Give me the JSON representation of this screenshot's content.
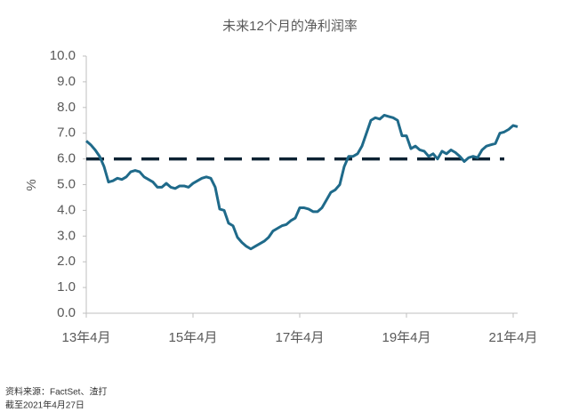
{
  "chart_data": {
    "type": "line",
    "title": "未来12个月的净利润率",
    "ylabel": "%",
    "categories": [
      "13年4月",
      null,
      null,
      null,
      null,
      null,
      null,
      null,
      null,
      null,
      null,
      null,
      null,
      null,
      null,
      null,
      null,
      null,
      null,
      null,
      null,
      null,
      null,
      null,
      "15年4月",
      null,
      null,
      null,
      null,
      null,
      null,
      null,
      null,
      null,
      null,
      null,
      null,
      null,
      null,
      null,
      null,
      null,
      null,
      null,
      null,
      null,
      null,
      null,
      "17年4月",
      null,
      null,
      null,
      null,
      null,
      null,
      null,
      null,
      null,
      null,
      null,
      null,
      null,
      null,
      null,
      null,
      null,
      null,
      null,
      null,
      null,
      null,
      null,
      "19年4月",
      null,
      null,
      null,
      null,
      null,
      null,
      null,
      null,
      null,
      null,
      null,
      null,
      null,
      null,
      null,
      null,
      null,
      null,
      null,
      null,
      null,
      null,
      null,
      "21年4月",
      null
    ],
    "series": [
      {
        "color": "#1f6a8a",
        "values": [
          6.7,
          6.55,
          6.35,
          6.1,
          5.7,
          5.1,
          5.15,
          5.25,
          5.2,
          5.3,
          5.5,
          5.55,
          5.5,
          5.3,
          5.2,
          5.1,
          4.9,
          4.9,
          5.05,
          4.9,
          4.85,
          4.95,
          4.95,
          4.9,
          5.05,
          5.15,
          5.25,
          5.3,
          5.25,
          4.9,
          4.05,
          4.0,
          3.5,
          3.4,
          2.95,
          2.75,
          2.6,
          2.5,
          2.6,
          2.7,
          2.8,
          2.95,
          3.2,
          3.3,
          3.4,
          3.45,
          3.6,
          3.7,
          4.1,
          4.1,
          4.05,
          3.95,
          3.95,
          4.1,
          4.4,
          4.7,
          4.8,
          5.0,
          5.7,
          6.1,
          6.1,
          6.2,
          6.5,
          7.0,
          7.5,
          7.6,
          7.55,
          7.7,
          7.65,
          7.6,
          7.5,
          6.9,
          6.9,
          6.4,
          6.5,
          6.35,
          6.3,
          6.1,
          6.2,
          6.0,
          6.3,
          6.2,
          6.35,
          6.25,
          6.1,
          5.9,
          6.05,
          6.1,
          6.05,
          6.35,
          6.5,
          6.55,
          6.6,
          7.0,
          7.05,
          7.15,
          7.3,
          7.25
        ]
      }
    ],
    "average_line": {
      "value": 6.0,
      "color": "#0d2233"
    },
    "ylim": [
      0,
      10
    ],
    "yticks": [
      {
        "value": 0,
        "label": "0.0"
      },
      {
        "value": 1,
        "label": "1.0"
      },
      {
        "value": 2,
        "label": "2.0"
      },
      {
        "value": 3,
        "label": "3.0"
      },
      {
        "value": 4,
        "label": "4.0"
      },
      {
        "value": 5,
        "label": "5.0"
      },
      {
        "value": 6,
        "label": "6.0"
      },
      {
        "value": 7,
        "label": "7.0"
      },
      {
        "value": 8,
        "label": "8.0"
      },
      {
        "value": 9,
        "label": "9.0"
      },
      {
        "value": 10,
        "label": "10.0"
      }
    ],
    "grid": false
  },
  "footnotes": [
    "资料来源：FactSet、渣打",
    "截至2021年4月27日"
  ]
}
